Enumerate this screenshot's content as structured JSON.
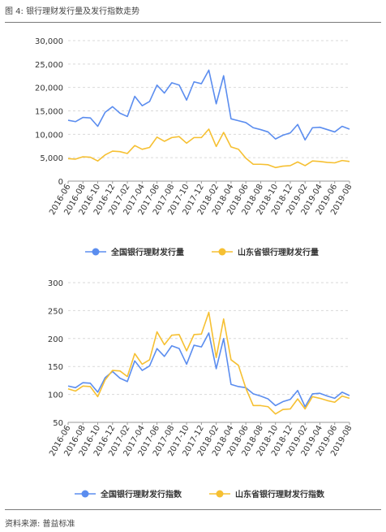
{
  "figure": {
    "title": "图 4: 银行理财发行量及发行指数走势",
    "source": "资料来源: 普益标准"
  },
  "colors": {
    "national": "#5b8def",
    "shandong": "#f6c032",
    "grid": "#d9d9d9",
    "axis": "#999999"
  },
  "chart_data": [
    {
      "type": "line",
      "title": "",
      "xlabel": "",
      "ylabel": "",
      "ylim": [
        0,
        30000
      ],
      "yticks": [
        "0",
        "5,000",
        "10,000",
        "15,000",
        "20,000",
        "25,000",
        "30,000"
      ],
      "grid": true,
      "legend": "bottom",
      "x": [
        "2016-06",
        "2016-07",
        "2016-08",
        "2016-09",
        "2016-10",
        "2016-11",
        "2016-12",
        "2017-01",
        "2017-02",
        "2017-03",
        "2017-04",
        "2017-05",
        "2017-06",
        "2017-07",
        "2017-08",
        "2017-09",
        "2017-10",
        "2017-11",
        "2017-12",
        "2018-01",
        "2018-02",
        "2018-03",
        "2018-04",
        "2018-05",
        "2018-06",
        "2018-07",
        "2018-08",
        "2018-09",
        "2018-10",
        "2018-11",
        "2018-12",
        "2019-01",
        "2019-02",
        "2019-03",
        "2019-04",
        "2019-05",
        "2019-06",
        "2019-07",
        "2019-08"
      ],
      "xtick_labels": [
        "2016-06",
        "2016-08",
        "2016-10",
        "2016-12",
        "2017-02",
        "2017-04",
        "2017-06",
        "2017-08",
        "2017-10",
        "2017-12",
        "2018-02",
        "2018-04",
        "2018-06",
        "2018-08",
        "2018-10",
        "2018-12",
        "2019-02",
        "2019-04",
        "2019-06",
        "2019-08"
      ],
      "series": [
        {
          "name": "全国银行理财发行量",
          "values": [
            13000,
            12700,
            13600,
            13500,
            11700,
            14700,
            15900,
            14500,
            13800,
            18100,
            16100,
            17000,
            20500,
            18800,
            21000,
            20500,
            17300,
            21200,
            20800,
            23700,
            16500,
            22500,
            13300,
            12900,
            12500,
            11400,
            11000,
            10500,
            9000,
            9800,
            10300,
            12100,
            8800,
            11400,
            11500,
            11000,
            10500,
            11700,
            11100
          ]
        },
        {
          "name": "山东省银行理财发行量",
          "values": [
            4800,
            4700,
            5200,
            5100,
            4300,
            5600,
            6400,
            6300,
            5900,
            7600,
            6800,
            7200,
            9400,
            8500,
            9300,
            9500,
            8100,
            9300,
            9300,
            11100,
            7400,
            10400,
            7300,
            6800,
            4900,
            3600,
            3600,
            3500,
            2900,
            3200,
            3300,
            4100,
            3300,
            4300,
            4200,
            4000,
            3900,
            4400,
            4200
          ]
        }
      ]
    },
    {
      "type": "line",
      "title": "",
      "xlabel": "",
      "ylabel": "",
      "ylim": [
        50,
        300
      ],
      "yticks": [
        "50",
        "100",
        "150",
        "200",
        "250",
        "300"
      ],
      "grid": true,
      "legend": "bottom",
      "x": [
        "2016-06",
        "2016-07",
        "2016-08",
        "2016-09",
        "2016-10",
        "2016-11",
        "2016-12",
        "2017-01",
        "2017-02",
        "2017-03",
        "2017-04",
        "2017-05",
        "2017-06",
        "2017-07",
        "2017-08",
        "2017-09",
        "2017-10",
        "2017-11",
        "2017-12",
        "2018-01",
        "2018-02",
        "2018-03",
        "2018-04",
        "2018-05",
        "2018-06",
        "2018-07",
        "2018-08",
        "2018-09",
        "2018-10",
        "2018-11",
        "2018-12",
        "2019-01",
        "2019-02",
        "2019-03",
        "2019-04",
        "2019-05",
        "2019-06",
        "2019-07",
        "2019-08"
      ],
      "xtick_labels": [
        "2016-06",
        "2016-08",
        "2016-10",
        "2016-12",
        "2017-02",
        "2017-04",
        "2017-06",
        "2017-08",
        "2017-10",
        "2017-12",
        "2018-02",
        "2018-04",
        "2018-06",
        "2018-08",
        "2018-10",
        "2018-12",
        "2019-02",
        "2019-04",
        "2019-06",
        "2019-08"
      ],
      "series": [
        {
          "name": "全国银行理财发行指数",
          "values": [
            115,
            112,
            121,
            120,
            104,
            130,
            141,
            129,
            123,
            160,
            143,
            151,
            182,
            168,
            187,
            182,
            154,
            188,
            185,
            210,
            146,
            200,
            118,
            114,
            112,
            101,
            97,
            92,
            80,
            87,
            91,
            107,
            78,
            101,
            102,
            97,
            93,
            104,
            98
          ]
        },
        {
          "name": "山东省银行理财发行指数",
          "values": [
            110,
            106,
            115,
            114,
            96,
            126,
            143,
            142,
            132,
            173,
            154,
            162,
            212,
            189,
            206,
            207,
            178,
            207,
            208,
            247,
            166,
            235,
            162,
            152,
            111,
            80,
            80,
            78,
            65,
            73,
            74,
            92,
            74,
            96,
            93,
            89,
            86,
            97,
            93
          ]
        }
      ]
    }
  ]
}
